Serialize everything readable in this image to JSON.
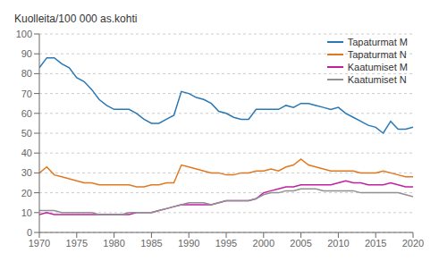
{
  "chart_data": {
    "type": "line",
    "ylabel": "Kuolleita/100 000 as.kohti",
    "x": [
      1970,
      1971,
      1972,
      1973,
      1974,
      1975,
      1976,
      1977,
      1978,
      1979,
      1980,
      1981,
      1982,
      1983,
      1984,
      1985,
      1986,
      1987,
      1988,
      1989,
      1990,
      1991,
      1992,
      1993,
      1994,
      1995,
      1996,
      1997,
      1998,
      1999,
      2000,
      2001,
      2002,
      2003,
      2004,
      2005,
      2006,
      2007,
      2008,
      2009,
      2010,
      2011,
      2012,
      2013,
      2014,
      2015,
      2016,
      2017,
      2018,
      2019,
      2020
    ],
    "series": [
      {
        "name": "Tapaturmat M",
        "color": "#2878b5",
        "values": [
          83,
          88,
          88,
          85,
          83,
          78,
          76,
          72,
          67,
          64,
          62,
          62,
          62,
          60,
          57,
          55,
          55,
          57,
          59,
          71,
          70,
          68,
          67,
          65,
          61,
          60,
          58,
          57,
          57,
          62,
          62,
          62,
          62,
          64,
          63,
          65,
          65,
          64,
          63,
          62,
          63,
          60,
          58,
          56,
          54,
          53,
          50,
          56,
          52,
          52,
          53
        ]
      },
      {
        "name": "Tapaturmat N",
        "color": "#e07820",
        "values": [
          30,
          33,
          29,
          28,
          27,
          26,
          25,
          25,
          24,
          24,
          24,
          24,
          24,
          23,
          23,
          24,
          24,
          25,
          25,
          34,
          33,
          32,
          31,
          30,
          30,
          29,
          29,
          30,
          30,
          31,
          31,
          32,
          31,
          33,
          34,
          37,
          34,
          33,
          32,
          31,
          31,
          31,
          31,
          30,
          30,
          30,
          31,
          30,
          29,
          28,
          28
        ]
      },
      {
        "name": "Kaatumiset M",
        "color": "#c020a0",
        "values": [
          9,
          10,
          9,
          9,
          9,
          9,
          9,
          9,
          9,
          9,
          9,
          9,
          9,
          10,
          10,
          10,
          11,
          12,
          13,
          14,
          14,
          14,
          14,
          14,
          15,
          16,
          16,
          16,
          16,
          17,
          20,
          21,
          22,
          23,
          23,
          24,
          24,
          24,
          24,
          24,
          25,
          26,
          25,
          25,
          24,
          24,
          24,
          25,
          24,
          23,
          23
        ]
      },
      {
        "name": "Kaatumiset N",
        "color": "#909090",
        "values": [
          11,
          11,
          11,
          10,
          10,
          10,
          10,
          10,
          9,
          9,
          9,
          9,
          10,
          10,
          10,
          10,
          11,
          12,
          13,
          14,
          15,
          15,
          15,
          14,
          15,
          16,
          16,
          16,
          16,
          17,
          19,
          20,
          20,
          21,
          21,
          22,
          22,
          22,
          21,
          21,
          21,
          21,
          21,
          20,
          20,
          20,
          20,
          20,
          20,
          19,
          18
        ]
      }
    ],
    "xlim": [
      1970,
      2020
    ],
    "ylim": [
      0,
      100
    ],
    "xticks": [
      1970,
      1975,
      1980,
      1985,
      1990,
      1995,
      2000,
      2005,
      2010,
      2015,
      2020
    ],
    "yticks": [
      0,
      10,
      20,
      30,
      40,
      50,
      60,
      70,
      80,
      90,
      100
    ],
    "grid": true,
    "legend": "upper right"
  }
}
